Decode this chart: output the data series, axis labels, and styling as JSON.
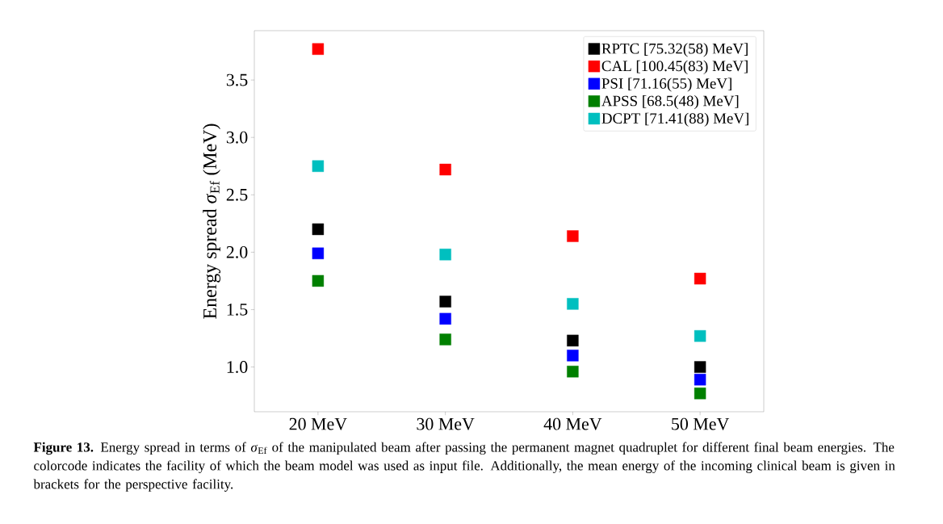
{
  "chart_data": {
    "type": "scatter",
    "ylabel": "Energy spread *σ*$_{Ef}$ (MeV)",
    "categories": [
      "20 MeV",
      "30 MeV",
      "40 MeV",
      "50 MeV"
    ],
    "series": [
      {
        "name": "RPTC [75.32(58) MeV]",
        "color": "#000000",
        "values": [
          2.2,
          1.57,
          1.23,
          1.0
        ]
      },
      {
        "name": "CAL [100.45(83) MeV]",
        "color": "#ff0000",
        "values": [
          3.77,
          2.72,
          2.14,
          1.77
        ]
      },
      {
        "name": "PSI [71.16(55) MeV]",
        "color": "#0000ff",
        "values": [
          1.99,
          1.42,
          1.1,
          0.89
        ]
      },
      {
        "name": "APSS [68.5(48) MeV]",
        "color": "#008000",
        "values": [
          1.75,
          1.24,
          0.96,
          0.77
        ]
      },
      {
        "name": "DCPT [71.41(88) MeV]",
        "color": "#00bfbf",
        "values": [
          2.75,
          1.98,
          1.55,
          1.27
        ]
      }
    ],
    "ylim": [
      0.61,
      3.93
    ],
    "yticks": [
      {
        "value": 1.0,
        "label": "1.0"
      },
      {
        "value": 1.5,
        "label": "1.5"
      },
      {
        "value": 2.0,
        "label": "2.0"
      },
      {
        "value": 2.5,
        "label": "2.5"
      },
      {
        "value": 3.0,
        "label": "3.0"
      },
      {
        "value": 3.5,
        "label": "3.5"
      }
    ],
    "marker": "square",
    "legend": "top right",
    "annotations": [
      "**Figure 13.** Energy spread in terms of *σ*$_{Ef}$ of the manipulated beam after passing the permanent magnet quadruplet for different final beam energies. The colorcode indicates the facility of which the beam model was used as input file. Additionally, the mean energy of the incoming clinical beam is given in brackets for the perspective facility."
    ]
  }
}
